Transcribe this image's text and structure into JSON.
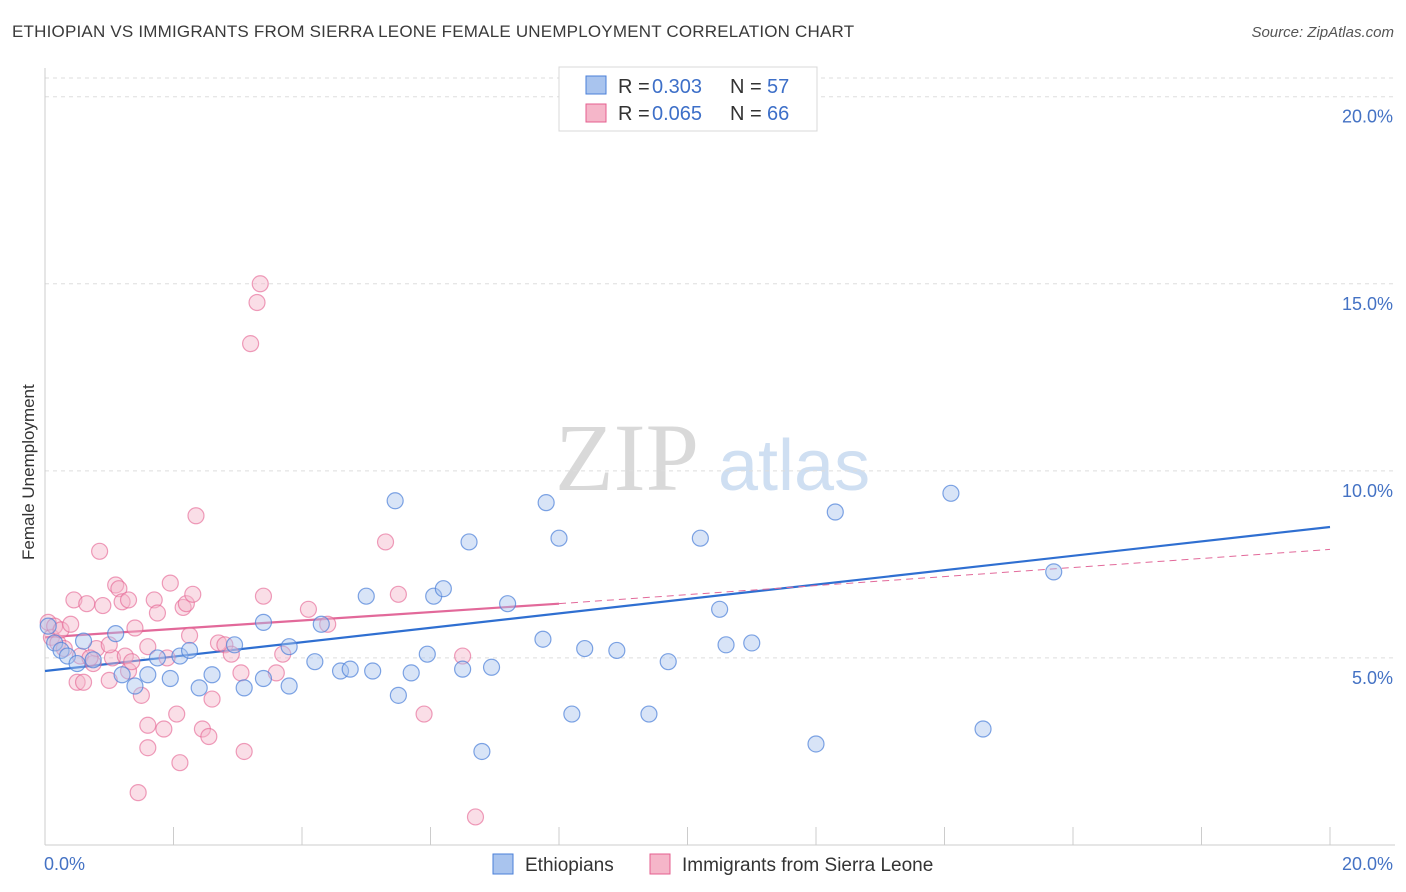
{
  "title": "ETHIOPIAN VS IMMIGRANTS FROM SIERRA LEONE FEMALE UNEMPLOYMENT CORRELATION CHART",
  "source": "Source: ZipAtlas.com",
  "watermark": {
    "zip": "ZIP",
    "atlas": "atlas"
  },
  "colors": {
    "blue": "#4a7fd8",
    "blue_fill": "#a9c4ee",
    "blue_line": "#2f6fd1",
    "pink": "#e55f8f",
    "pink_fill": "#f5b6c9",
    "pink_line": "#e2699a",
    "grid": "#dddddd",
    "axis_text": "#4472c4"
  },
  "legend": {
    "series": [
      {
        "r_label": "R =",
        "r_value": "0.303",
        "n_label": "N =",
        "n_value": "57"
      },
      {
        "r_label": "R =",
        "r_value": "0.065",
        "n_label": "N =",
        "n_value": "66"
      }
    ]
  },
  "bottom_legend": [
    "Ethiopians",
    "Immigrants from Sierra Leone"
  ],
  "chart_data": {
    "type": "scatter",
    "title": "ETHIOPIAN VS IMMIGRANTS FROM SIERRA LEONE FEMALE UNEMPLOYMENT CORRELATION CHART",
    "xlabel": "",
    "ylabel": "Female Unemployment",
    "xlim": [
      0,
      20
    ],
    "ylim": [
      0,
      20.5
    ],
    "x_tick_labels": [
      "0.0%",
      "20.0%"
    ],
    "y_ticks": [
      5,
      10,
      15,
      20
    ],
    "y_tick_labels": [
      "5.0%",
      "10.0%",
      "15.0%",
      "20.0%"
    ],
    "grid": true,
    "series": [
      {
        "name": "Ethiopians",
        "R": 0.303,
        "N": 57,
        "trend": {
          "x0": 0,
          "y0": 4.65,
          "x1": 20,
          "y1": 8.5
        },
        "points": [
          [
            0.05,
            5.85
          ],
          [
            0.15,
            5.4
          ],
          [
            0.25,
            5.2
          ],
          [
            0.35,
            5.05
          ],
          [
            0.5,
            4.85
          ],
          [
            0.6,
            5.45
          ],
          [
            0.75,
            4.95
          ],
          [
            1.1,
            5.65
          ],
          [
            1.2,
            4.55
          ],
          [
            1.4,
            4.25
          ],
          [
            1.6,
            4.55
          ],
          [
            1.75,
            5.0
          ],
          [
            1.95,
            4.45
          ],
          [
            2.1,
            5.05
          ],
          [
            2.25,
            5.2
          ],
          [
            2.4,
            4.2
          ],
          [
            2.6,
            4.55
          ],
          [
            2.95,
            5.35
          ],
          [
            3.1,
            4.2
          ],
          [
            3.4,
            5.95
          ],
          [
            3.4,
            4.45
          ],
          [
            3.8,
            5.3
          ],
          [
            3.8,
            4.25
          ],
          [
            4.2,
            4.9
          ],
          [
            4.3,
            5.9
          ],
          [
            4.6,
            4.65
          ],
          [
            4.75,
            4.7
          ],
          [
            5.0,
            6.65
          ],
          [
            5.1,
            4.65
          ],
          [
            5.45,
            9.2
          ],
          [
            5.5,
            4.0
          ],
          [
            5.7,
            4.6
          ],
          [
            5.95,
            5.1
          ],
          [
            6.05,
            6.65
          ],
          [
            6.2,
            6.85
          ],
          [
            6.5,
            4.7
          ],
          [
            6.6,
            8.1
          ],
          [
            6.8,
            2.5
          ],
          [
            6.95,
            4.75
          ],
          [
            7.2,
            6.45
          ],
          [
            7.75,
            5.5
          ],
          [
            7.8,
            9.15
          ],
          [
            8.0,
            8.2
          ],
          [
            8.2,
            3.5
          ],
          [
            8.4,
            5.25
          ],
          [
            8.9,
            5.2
          ],
          [
            9.4,
            3.5
          ],
          [
            9.7,
            4.9
          ],
          [
            10.2,
            8.2
          ],
          [
            10.5,
            6.3
          ],
          [
            10.6,
            5.35
          ],
          [
            11.0,
            5.4
          ],
          [
            12.0,
            2.7
          ],
          [
            12.3,
            8.9
          ],
          [
            14.1,
            9.4
          ],
          [
            14.6,
            3.1
          ],
          [
            15.7,
            7.3
          ]
        ]
      },
      {
        "name": "Immigrants from Sierra Leone",
        "R": 0.065,
        "N": 66,
        "trend": {
          "x0": 0,
          "y0": 5.55,
          "x1": 8.0,
          "y1": 6.45,
          "dash_to_x": 20,
          "dash_to_y": 7.9
        },
        "points": [
          [
            0.05,
            5.95
          ],
          [
            0.1,
            5.55
          ],
          [
            0.15,
            5.85
          ],
          [
            0.2,
            5.4
          ],
          [
            0.25,
            5.75
          ],
          [
            0.3,
            5.25
          ],
          [
            0.4,
            5.9
          ],
          [
            0.45,
            6.55
          ],
          [
            0.5,
            4.35
          ],
          [
            0.55,
            5.05
          ],
          [
            0.6,
            4.35
          ],
          [
            0.65,
            6.45
          ],
          [
            0.75,
            4.85
          ],
          [
            0.8,
            5.25
          ],
          [
            0.85,
            7.85
          ],
          [
            0.9,
            6.4
          ],
          [
            1.0,
            4.4
          ],
          [
            1.05,
            5.0
          ],
          [
            1.1,
            6.95
          ],
          [
            1.15,
            6.85
          ],
          [
            1.2,
            6.5
          ],
          [
            1.25,
            5.05
          ],
          [
            1.3,
            4.65
          ],
          [
            1.35,
            4.9
          ],
          [
            1.4,
            5.8
          ],
          [
            1.45,
            1.4
          ],
          [
            1.5,
            4.0
          ],
          [
            1.6,
            5.3
          ],
          [
            1.6,
            2.6
          ],
          [
            1.7,
            6.55
          ],
          [
            1.75,
            6.2
          ],
          [
            1.85,
            3.1
          ],
          [
            1.9,
            5.0
          ],
          [
            1.95,
            7.0
          ],
          [
            2.05,
            3.5
          ],
          [
            2.1,
            2.2
          ],
          [
            2.15,
            6.35
          ],
          [
            2.2,
            6.45
          ],
          [
            2.25,
            5.6
          ],
          [
            2.3,
            6.7
          ],
          [
            2.35,
            8.8
          ],
          [
            2.45,
            3.1
          ],
          [
            2.55,
            2.9
          ],
          [
            2.6,
            3.9
          ],
          [
            2.7,
            5.4
          ],
          [
            2.8,
            5.35
          ],
          [
            2.9,
            5.1
          ],
          [
            3.05,
            4.6
          ],
          [
            3.1,
            2.5
          ],
          [
            3.2,
            13.4
          ],
          [
            3.3,
            14.5
          ],
          [
            3.35,
            15.0
          ],
          [
            3.4,
            6.65
          ],
          [
            3.6,
            4.6
          ],
          [
            3.7,
            5.1
          ],
          [
            4.1,
            6.3
          ],
          [
            4.4,
            5.9
          ],
          [
            5.3,
            8.1
          ],
          [
            5.5,
            6.7
          ],
          [
            5.9,
            3.5
          ],
          [
            6.5,
            5.05
          ],
          [
            6.7,
            0.75
          ],
          [
            1.6,
            3.2
          ],
          [
            0.7,
            5.0
          ],
          [
            1.0,
            5.35
          ],
          [
            1.3,
            6.55
          ]
        ]
      }
    ]
  }
}
